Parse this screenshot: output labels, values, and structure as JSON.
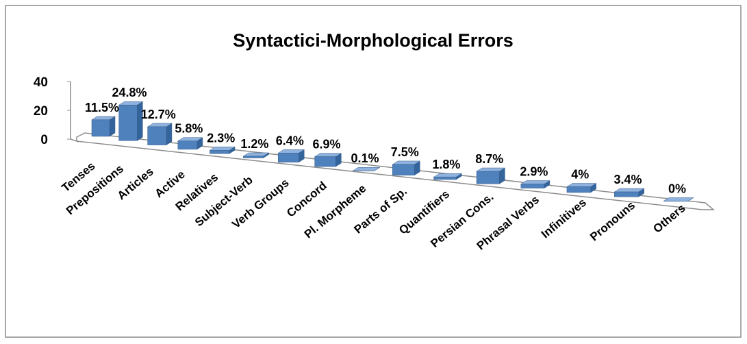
{
  "chart_data": {
    "type": "bar3d",
    "title": "Syntactici-Morphological Errors",
    "categories": [
      "Tenses",
      "Prepositions",
      "Articles",
      "Active",
      "Relatives",
      "Subject-Verb",
      "Verb Groups",
      "Concord",
      "Pl. Morpheme",
      "Parts of Sp.",
      "Quantifiers",
      "Persian Cons.",
      "Phrasal Verbs",
      "Infinitives",
      "Pronouns",
      "Others"
    ],
    "values": [
      11.5,
      24.8,
      12.7,
      5.8,
      2.3,
      1.2,
      6.4,
      6.9,
      0.1,
      7.5,
      1.8,
      8.7,
      2.9,
      4,
      3.4,
      0
    ],
    "value_labels": [
      "11.5%",
      "24.8%",
      "12.7%",
      "5.8%",
      "2.3%",
      "1.2%",
      "6.4%",
      "6.9%",
      "0.1%",
      "7.5%",
      "1.8%",
      "8.7%",
      "2.9%",
      "4%",
      "3.4%",
      "0%"
    ],
    "color": "#4f81bd",
    "ylim": [
      0,
      40
    ],
    "yticks": [
      0,
      20,
      40
    ]
  }
}
